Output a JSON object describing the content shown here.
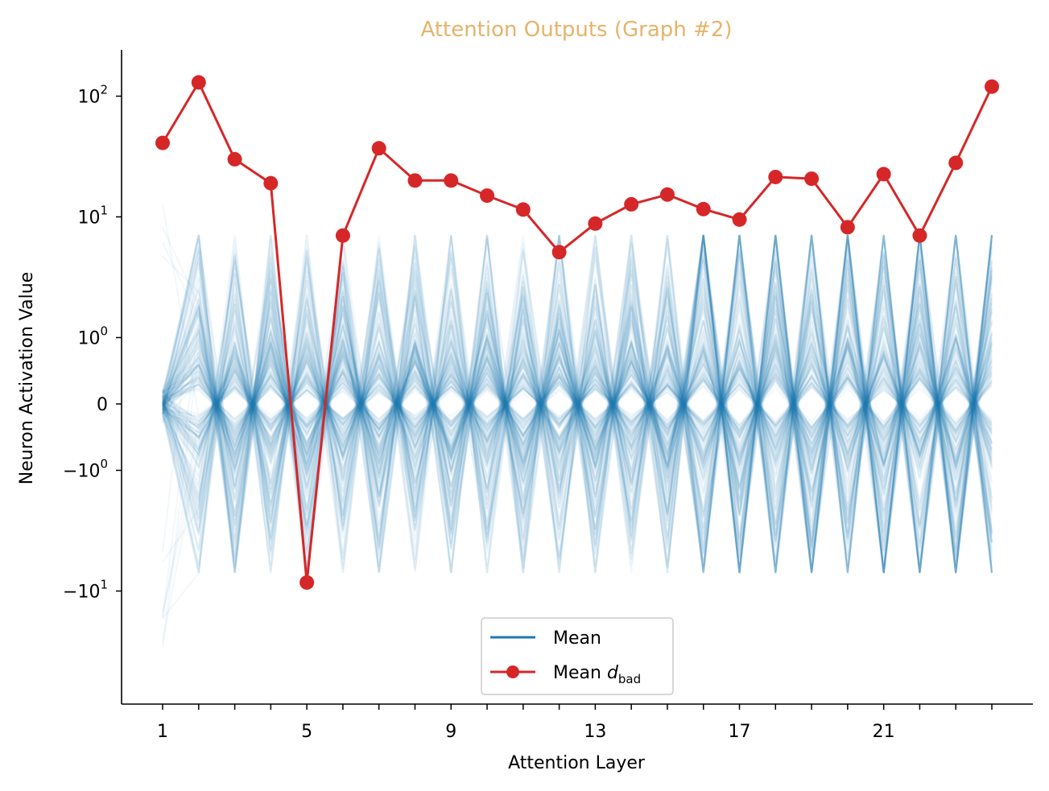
{
  "chart_data": {
    "type": "line",
    "title": "Attention Outputs (Graph #2)",
    "title_color": "#e6b36a",
    "xlabel": "Attention Layer",
    "ylabel": "Neuron Activation Value",
    "x_range": [
      1,
      24
    ],
    "x_ticks_labeled": [
      1,
      5,
      9,
      13,
      17,
      21
    ],
    "y_scale": "symlog",
    "y_ticks": [
      {
        "value": 100,
        "base": "10",
        "exp": "2"
      },
      {
        "value": 10,
        "base": "10",
        "exp": "1"
      },
      {
        "value": 1,
        "base": "10",
        "exp": "0"
      },
      {
        "value": 0,
        "base": "0",
        "exp": ""
      },
      {
        "value": -1,
        "base": "−10",
        "exp": "0"
      },
      {
        "value": -10,
        "base": "−10",
        "exp": "1"
      }
    ],
    "grid": false,
    "legend_placement": "lower center",
    "series": [
      {
        "name": "Mean",
        "color": "#1f77b4",
        "style": "many faint neuron traces alternating sign each layer"
      },
      {
        "name": "Mean d_bad",
        "legend_label_main": "Mean ",
        "legend_label_var": "d",
        "legend_label_sub": "bad",
        "color": "#d62728",
        "marker": "circle",
        "x": [
          1,
          2,
          3,
          4,
          5,
          6,
          7,
          8,
          9,
          10,
          11,
          12,
          13,
          14,
          15,
          16,
          17,
          18,
          19,
          20,
          21,
          22,
          23,
          24
        ],
        "y": [
          41,
          130,
          30,
          19,
          -8.5,
          7,
          37,
          20,
          20,
          15,
          11.5,
          5.1,
          8.8,
          12.7,
          15.3,
          11.6,
          9.5,
          21.4,
          20.7,
          8.2,
          22.6,
          7,
          28,
          120
        ]
      }
    ]
  }
}
